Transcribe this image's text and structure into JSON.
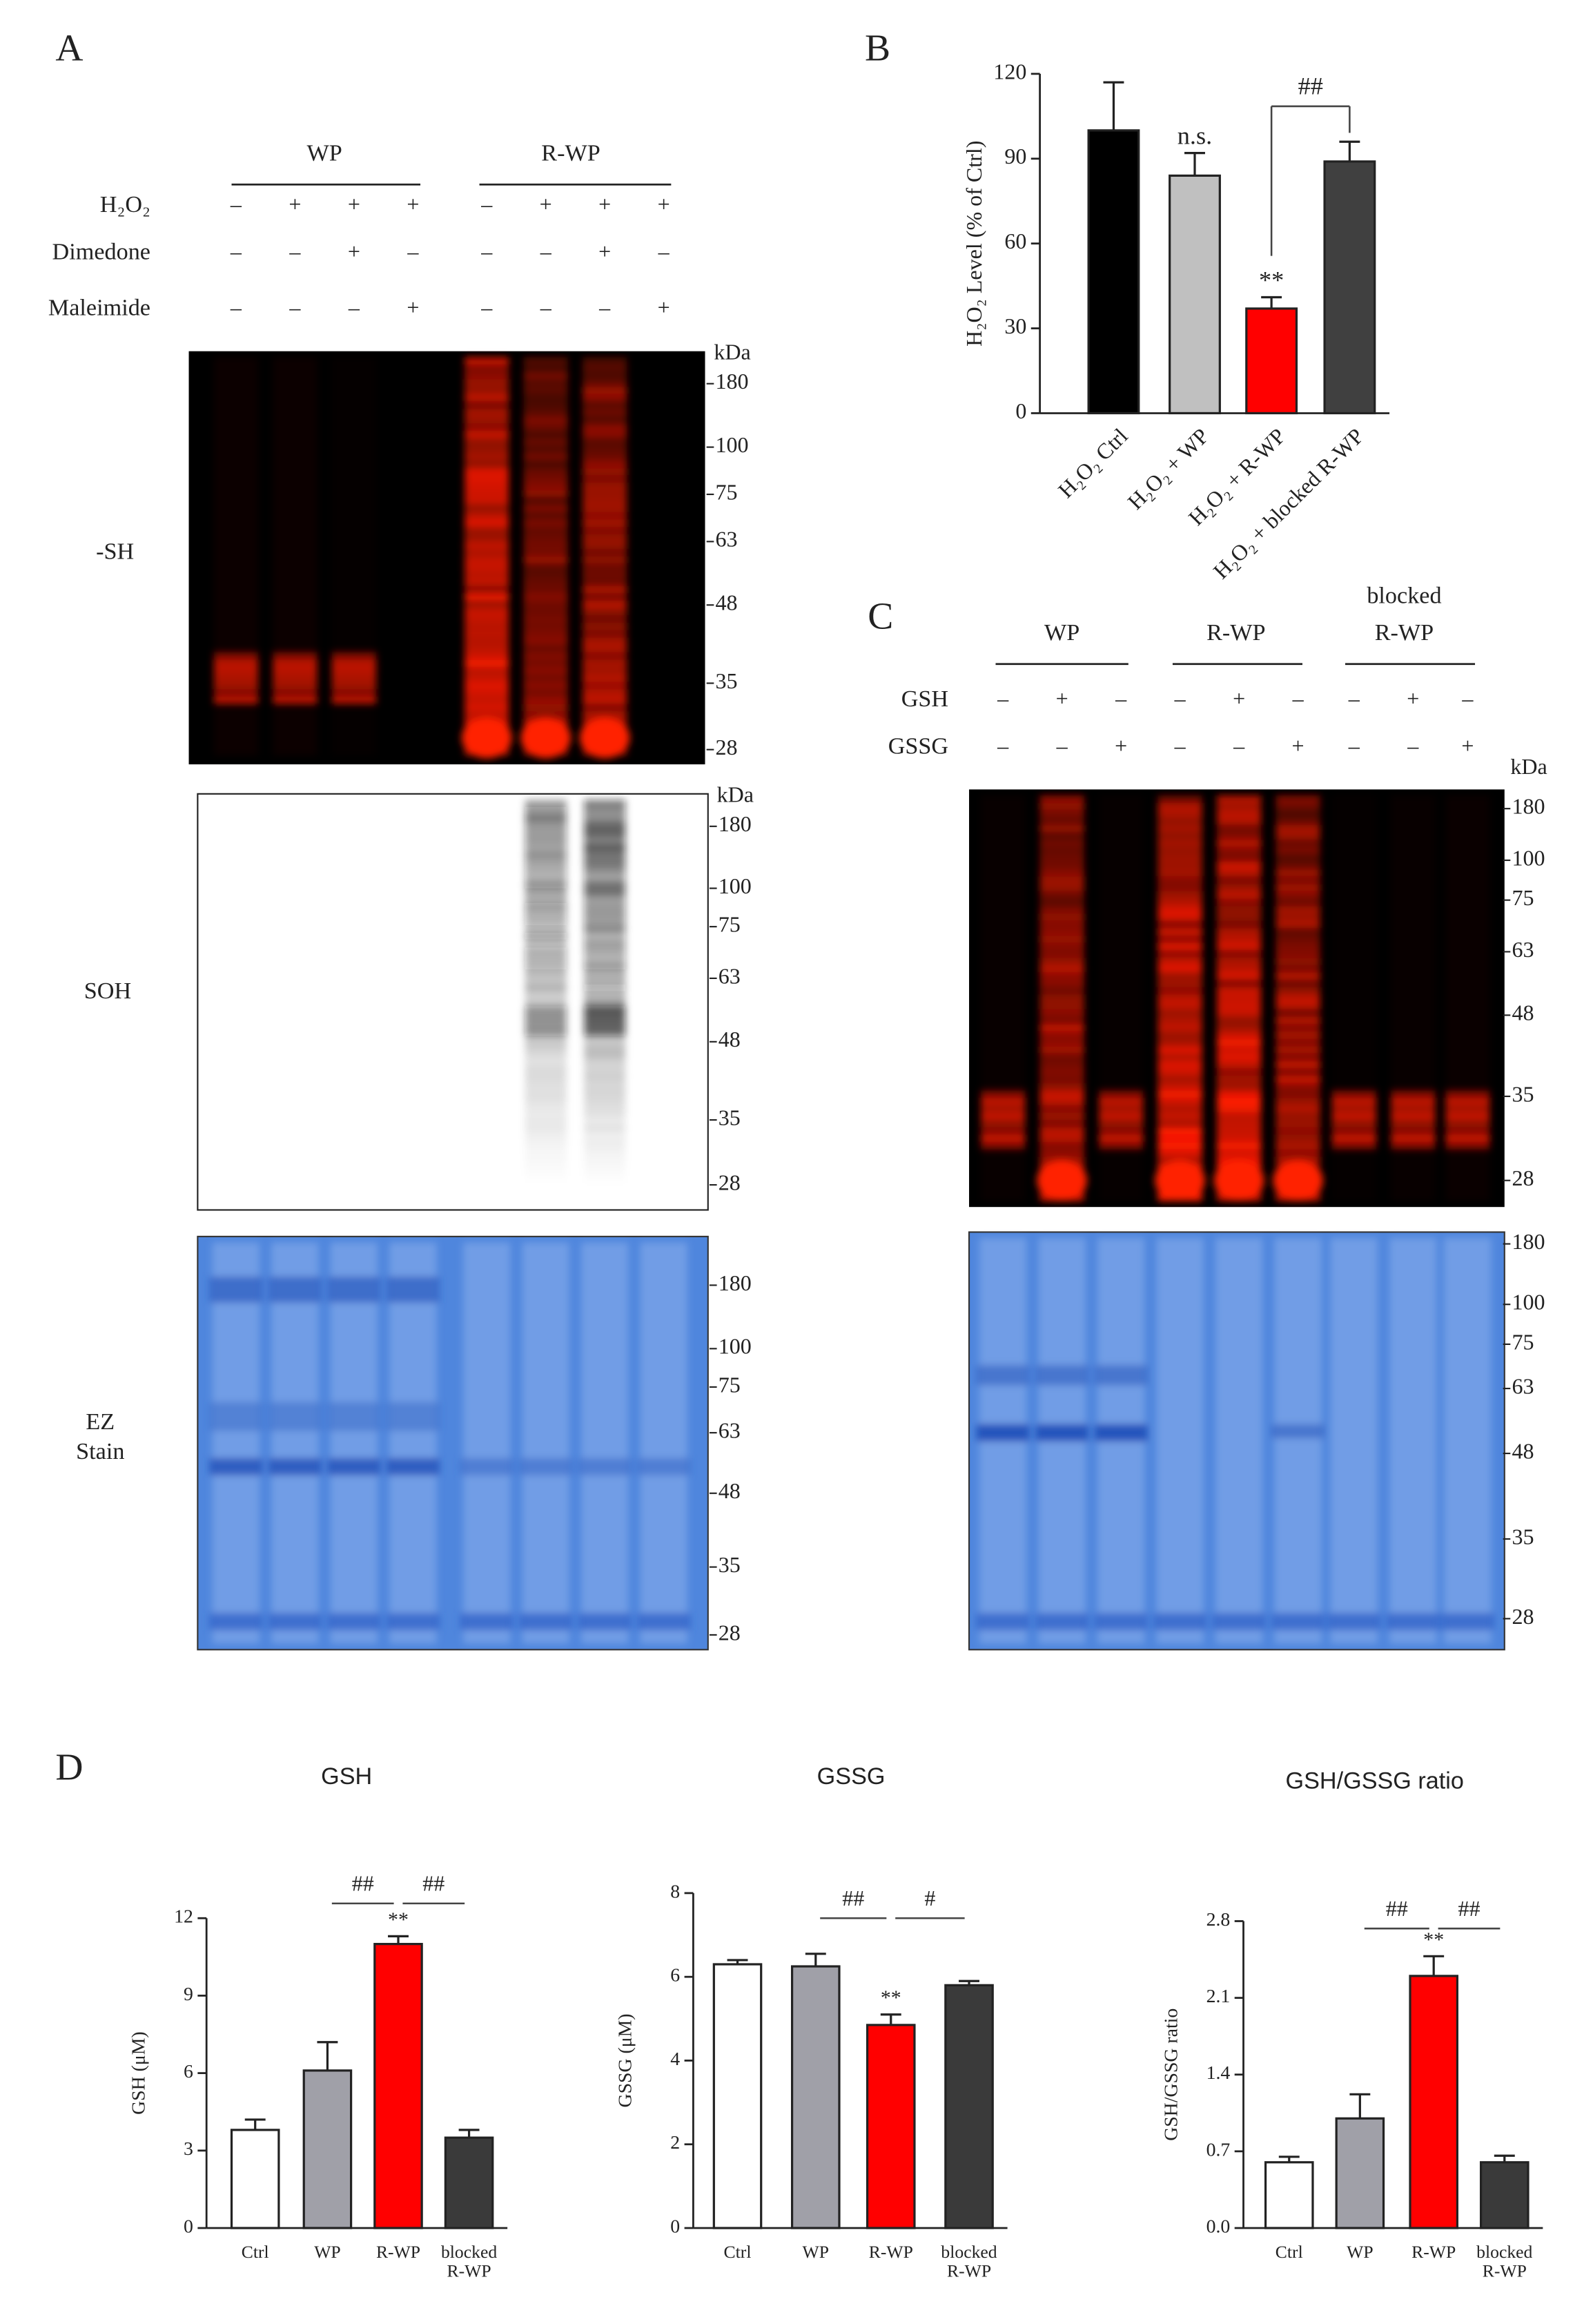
{
  "panels": {
    "A": {
      "letter": "A",
      "groups": [
        "WP",
        "R-WP"
      ],
      "rows": [
        {
          "label": "H₂O₂",
          "signs": [
            "–",
            "+",
            "+",
            "+",
            "–",
            "+",
            "+",
            "+"
          ]
        },
        {
          "label": "Dimedone",
          "signs": [
            "–",
            "–",
            "+",
            "–",
            "–",
            "–",
            "+",
            "–"
          ]
        },
        {
          "label": "Maleimide",
          "signs": [
            "–",
            "–",
            "–",
            "+",
            "–",
            "–",
            "–",
            "+"
          ]
        }
      ],
      "blots": [
        {
          "label": [
            "-SH"
          ],
          "unit": "kDa",
          "markers": [
            180,
            100,
            75,
            63,
            48,
            35,
            28
          ]
        },
        {
          "label": [
            "SOH"
          ],
          "unit": "kDa",
          "markers": [
            180,
            100,
            75,
            63,
            48,
            35,
            28
          ]
        },
        {
          "label": [
            "EZ",
            "Stain"
          ],
          "markers": [
            180,
            100,
            75,
            63,
            48,
            35,
            28
          ]
        }
      ]
    },
    "C": {
      "letter": "C",
      "groups": [
        [
          "WP"
        ],
        [
          "R-WP"
        ],
        [
          "blocked",
          "R-WP"
        ]
      ],
      "rows": [
        {
          "label": "GSH",
          "signs": [
            "–",
            "+",
            "–",
            "–",
            "+",
            "–",
            "–",
            "+",
            "–"
          ]
        },
        {
          "label": "GSSG",
          "signs": [
            "–",
            "–",
            "+",
            "–",
            "–",
            "+",
            "–",
            "–",
            "+"
          ]
        }
      ],
      "blots": [
        {
          "unit": "kDa",
          "markers": [
            180,
            100,
            75,
            63,
            48,
            35,
            28
          ]
        },
        {
          "markers": [
            180,
            100,
            75,
            63,
            48,
            35,
            28
          ]
        }
      ]
    }
  },
  "chart_data": [
    {
      "panel": "B",
      "type": "bar",
      "ylabel": "H₂O₂ Level (% of Ctrl)",
      "categories": [
        "H₂O₂ Ctrl",
        "H₂O₂ + WP",
        "H₂O₂ + R-WP",
        "H₂O₂ + blocked R-WP"
      ],
      "values": [
        100,
        84,
        37,
        89
      ],
      "errors": [
        17,
        8,
        4,
        7
      ],
      "colors": [
        "#000000",
        "#c0c0c0",
        "#ff0000",
        "#404040"
      ],
      "ylim": [
        0,
        120
      ],
      "yticks": [
        0,
        30,
        60,
        90,
        120
      ],
      "annotations": [
        "n.s.",
        "**",
        "##"
      ]
    },
    {
      "panel": "D",
      "type": "bar",
      "title": "GSH",
      "ylabel": "GSH (μM)",
      "categories": [
        "Ctrl",
        "WP",
        "R-WP",
        "blocked R-WP"
      ],
      "values": [
        3.8,
        6.1,
        11.0,
        3.5
      ],
      "errors": [
        0.4,
        1.1,
        0.3,
        0.3
      ],
      "colors": [
        "#ffffff",
        "#a0a0a8",
        "#ff0000",
        "#3a3a3a"
      ],
      "ylim": [
        0,
        12
      ],
      "yticks": [
        0,
        3,
        6,
        9,
        12
      ],
      "annotations": [
        "**",
        "##",
        "##"
      ]
    },
    {
      "type": "bar",
      "title": "GSSG",
      "ylabel": "GSSG (μM)",
      "categories": [
        "Ctrl",
        "WP",
        "R-WP",
        "blocked R-WP"
      ],
      "values": [
        6.3,
        6.25,
        4.85,
        5.8
      ],
      "errors": [
        0.1,
        0.3,
        0.25,
        0.1
      ],
      "colors": [
        "#ffffff",
        "#a0a0a8",
        "#ff0000",
        "#3a3a3a"
      ],
      "ylim": [
        0,
        8
      ],
      "yticks": [
        0,
        2,
        4,
        6,
        8
      ],
      "annotations": [
        "**",
        "##",
        "#"
      ]
    },
    {
      "type": "bar",
      "title": "GSH/GSSG ratio",
      "ylabel": "GSH/GSSG ratio",
      "categories": [
        "Ctrl",
        "WP",
        "R-WP",
        "blocked R-WP"
      ],
      "values": [
        0.6,
        1.0,
        2.3,
        0.6
      ],
      "errors": [
        0.05,
        0.22,
        0.18,
        0.06
      ],
      "colors": [
        "#ffffff",
        "#a0a0a8",
        "#ff0000",
        "#3a3a3a"
      ],
      "ylim": [
        0,
        2.8
      ],
      "yticks": [
        {
          "value": 0,
          "label": "0.0"
        },
        0.7,
        1.4,
        2.1,
        2.8
      ],
      "annotations": [
        "**",
        "##",
        "##"
      ]
    }
  ]
}
